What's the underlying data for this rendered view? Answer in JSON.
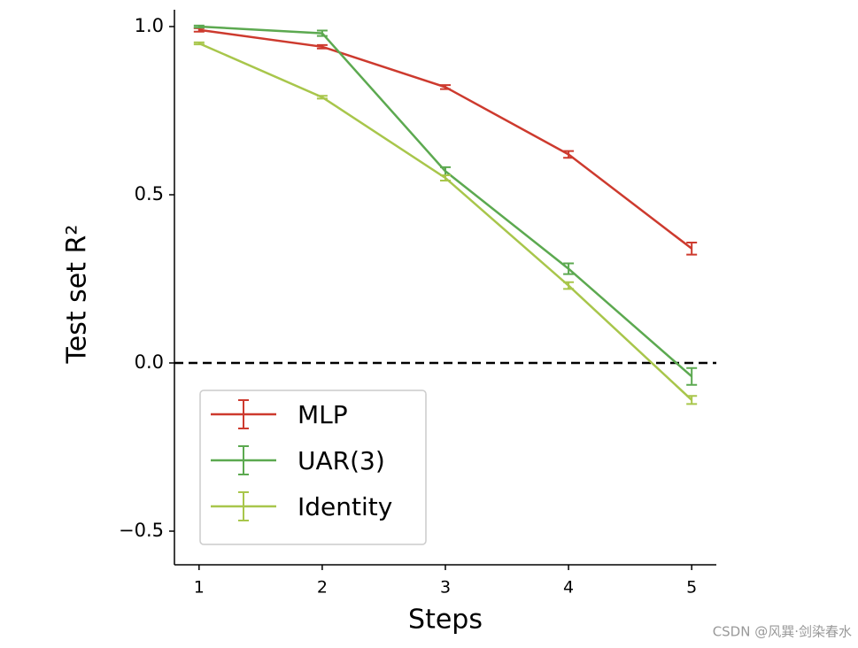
{
  "chart_data": {
    "type": "line",
    "xlabel": "Steps",
    "ylabel": "Test set R²",
    "x": [
      1,
      2,
      3,
      4,
      5
    ],
    "series": [
      {
        "name": "MLP",
        "color": "#cd3a2e",
        "values": [
          0.99,
          0.94,
          0.82,
          0.62,
          0.34
        ],
        "errors": [
          0.005,
          0.005,
          0.006,
          0.01,
          0.018
        ]
      },
      {
        "name": "UAR(3)",
        "color": "#5ca950",
        "values": [
          1.0,
          0.98,
          0.57,
          0.28,
          -0.04
        ],
        "errors": [
          0.003,
          0.008,
          0.012,
          0.016,
          0.025
        ]
      },
      {
        "name": "Identity",
        "color": "#a8c64b",
        "values": [
          0.95,
          0.79,
          0.55,
          0.23,
          -0.11
        ],
        "errors": [
          0.003,
          0.004,
          0.008,
          0.01,
          0.012
        ]
      }
    ],
    "xlim": [
      0.8,
      5.2
    ],
    "xticks": [
      1,
      2,
      3,
      4,
      5
    ],
    "ylim": [
      -0.6,
      1.05
    ],
    "yticks": [
      {
        "value": -0.5,
        "label": "−0.5"
      },
      {
        "value": 0,
        "label": "0.0"
      },
      0.5,
      {
        "value": 1,
        "label": "1.0"
      }
    ],
    "hline": 0,
    "legend": "lower left",
    "watermark": "CSDN @风巽·剑染春水"
  }
}
